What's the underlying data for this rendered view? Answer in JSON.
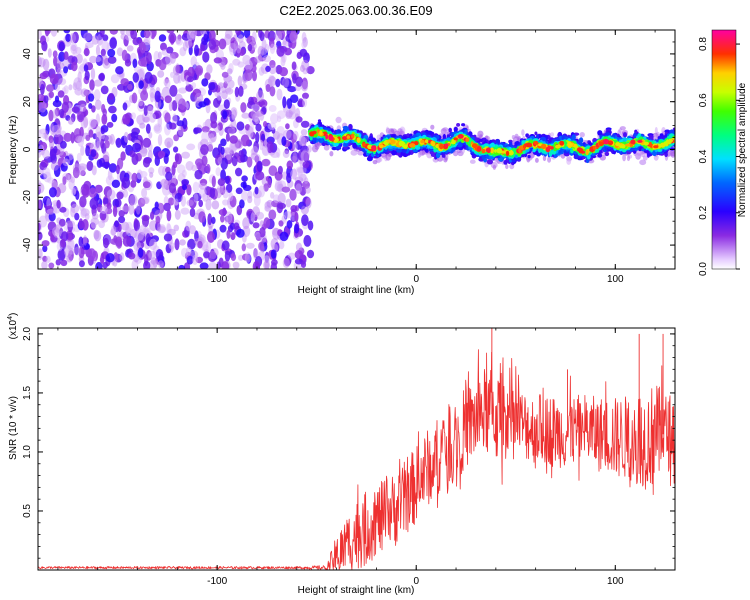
{
  "title": "C2E2.2025.063.00.36.E09",
  "colors": {
    "snr_line": "#ee3030",
    "axis": "#000000",
    "background": "#ffffff"
  },
  "chart_data": [
    {
      "type": "heatmap",
      "xlabel": "Height of straight line (km)",
      "ylabel": "Frequency (Hz)",
      "xlim": [
        -190,
        130
      ],
      "ylim": [
        -50,
        50
      ],
      "x_ticks": [
        -100,
        0,
        100
      ],
      "y_ticks": [
        -40,
        -20,
        0,
        20,
        40
      ],
      "colorbar": {
        "label": "Normalized spectral amplitude",
        "range": [
          0.0,
          0.85
        ],
        "ticks": [
          0.0,
          0.2,
          0.4,
          0.6,
          0.8
        ],
        "colormap": "rainbow (white-violet-blue-cyan-green-yellow-red-magenta)"
      },
      "regions": [
        {
          "x_range": [
            -190,
            -53
          ],
          "description_frequency_range": [
            -50,
            50
          ],
          "amplitude_level": 0.05
        },
        {
          "x_range": [
            -53,
            130
          ],
          "description_frequency_range": [
            -8,
            10
          ],
          "amplitude_level": 0.35,
          "peak_amplitude": 0.8
        }
      ],
      "signal_center_frequency": [
        {
          "x": -50,
          "f": 6
        },
        {
          "x": -35,
          "f": 5
        },
        {
          "x": -20,
          "f": 1
        },
        {
          "x": -5,
          "f": 3
        },
        {
          "x": 10,
          "f": 2
        },
        {
          "x": 25,
          "f": 4
        },
        {
          "x": 40,
          "f": -2
        },
        {
          "x": 55,
          "f": 1
        },
        {
          "x": 70,
          "f": 2
        },
        {
          "x": 85,
          "f": 0
        },
        {
          "x": 100,
          "f": 3
        },
        {
          "x": 115,
          "f": 2
        },
        {
          "x": 130,
          "f": 3
        }
      ]
    },
    {
      "type": "line",
      "xlabel": "Height of straight line (km)",
      "ylabel": "SNR (10 * v/v)",
      "y_multiplier": "(x10",
      "y_multiplier_exp": "4",
      "y_multiplier_close": ")",
      "xlim": [
        -190,
        130
      ],
      "ylim": [
        0,
        2.05
      ],
      "x_ticks": [
        -100,
        0,
        100
      ],
      "y_ticks": [
        0.5,
        1.0,
        1.5,
        2.0
      ],
      "series": [
        {
          "x": [
            -190,
            -60,
            -45,
            -40,
            -35,
            -30,
            -25,
            -20,
            -15,
            -10,
            -5,
            0,
            5,
            10,
            15,
            20,
            25,
            30,
            35,
            40,
            45,
            50,
            55,
            60,
            65,
            70,
            75,
            80,
            85,
            90,
            95,
            100,
            105,
            110,
            115,
            120,
            125,
            130
          ],
          "values": [
            0.02,
            0.02,
            0.02,
            0.12,
            0.22,
            0.3,
            0.35,
            0.42,
            0.48,
            0.52,
            0.62,
            0.72,
            0.85,
            0.95,
            1.05,
            1.12,
            1.2,
            1.28,
            1.35,
            1.3,
            1.3,
            1.25,
            1.22,
            1.2,
            1.2,
            1.18,
            1.15,
            1.18,
            1.2,
            1.15,
            1.15,
            1.12,
            1.12,
            1.15,
            1.1,
            1.15,
            1.15,
            1.2
          ],
          "noise_amplitude": [
            0.01,
            0.01,
            0.02,
            0.18,
            0.25,
            0.3,
            0.32,
            0.3,
            0.3,
            0.32,
            0.32,
            0.33,
            0.33,
            0.33,
            0.33,
            0.35,
            0.35,
            0.36,
            0.38,
            0.4,
            0.36,
            0.32,
            0.3,
            0.3,
            0.3,
            0.3,
            0.3,
            0.3,
            0.3,
            0.32,
            0.32,
            0.35,
            0.36,
            0.4,
            0.42,
            0.45,
            0.35,
            0.3
          ]
        }
      ],
      "peak_points": [
        {
          "x": 38,
          "y": 2.05
        },
        {
          "x": 112,
          "y": 2.0
        },
        {
          "x": 124,
          "y": 2.0
        },
        {
          "x": 76,
          "y": 1.7
        }
      ]
    }
  ]
}
